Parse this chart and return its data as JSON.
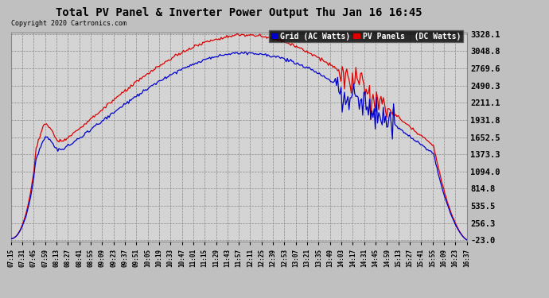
{
  "title": "Total PV Panel & Inverter Power Output Thu Jan 16 16:45",
  "copyright": "Copyright 2020 Cartronics.com",
  "legend_blue": "Grid (AC Watts)",
  "legend_red": "PV Panels  (DC Watts)",
  "yticks": [
    3328.1,
    3048.8,
    2769.6,
    2490.3,
    2211.1,
    1931.8,
    1652.5,
    1373.3,
    1094.0,
    814.8,
    535.5,
    256.3,
    -23.0
  ],
  "ymin": -23.0,
  "ymax": 3328.1,
  "bg_color": "#c0c0c0",
  "plot_bg_color": "#d4d4d4",
  "grid_color": "#888888",
  "blue_color": "#0000cc",
  "red_color": "#dd0000",
  "xtick_labels": [
    "07:15",
    "07:31",
    "07:45",
    "07:59",
    "08:13",
    "08:27",
    "08:41",
    "08:55",
    "09:09",
    "09:23",
    "09:37",
    "09:51",
    "10:05",
    "10:19",
    "10:33",
    "10:47",
    "11:01",
    "11:15",
    "11:29",
    "11:43",
    "11:57",
    "12:11",
    "12:25",
    "12:39",
    "12:53",
    "13:07",
    "13:21",
    "13:35",
    "13:49",
    "14:03",
    "14:17",
    "14:31",
    "14:45",
    "14:59",
    "15:13",
    "15:27",
    "15:41",
    "15:55",
    "16:09",
    "16:23",
    "16:37"
  ]
}
